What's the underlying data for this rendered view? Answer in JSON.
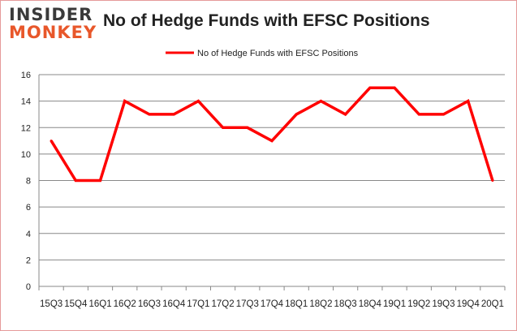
{
  "logo": {
    "line1": "INSIDER",
    "line2": "MONKEY"
  },
  "chart_data": {
    "type": "line",
    "title": "No of Hedge Funds with EFSC Positions",
    "categories": [
      "15Q3",
      "15Q4",
      "16Q1",
      "16Q2",
      "16Q3",
      "16Q4",
      "17Q1",
      "17Q2",
      "17Q3",
      "17Q4",
      "18Q1",
      "18Q2",
      "18Q3",
      "18Q4",
      "19Q1",
      "19Q2",
      "19Q3",
      "19Q4",
      "20Q1"
    ],
    "series": [
      {
        "name": "No of Hedge Funds with EFSC Positions",
        "color": "#ff0000",
        "values": [
          11,
          8,
          8,
          14,
          13,
          13,
          14,
          12,
          12,
          11,
          13,
          14,
          13,
          15,
          15,
          13,
          13,
          14,
          8
        ]
      }
    ],
    "ylim": [
      0,
      16
    ],
    "yticks": [
      0,
      2,
      4,
      6,
      8,
      10,
      12,
      14,
      16
    ],
    "grid": true,
    "legend": "top-center"
  }
}
